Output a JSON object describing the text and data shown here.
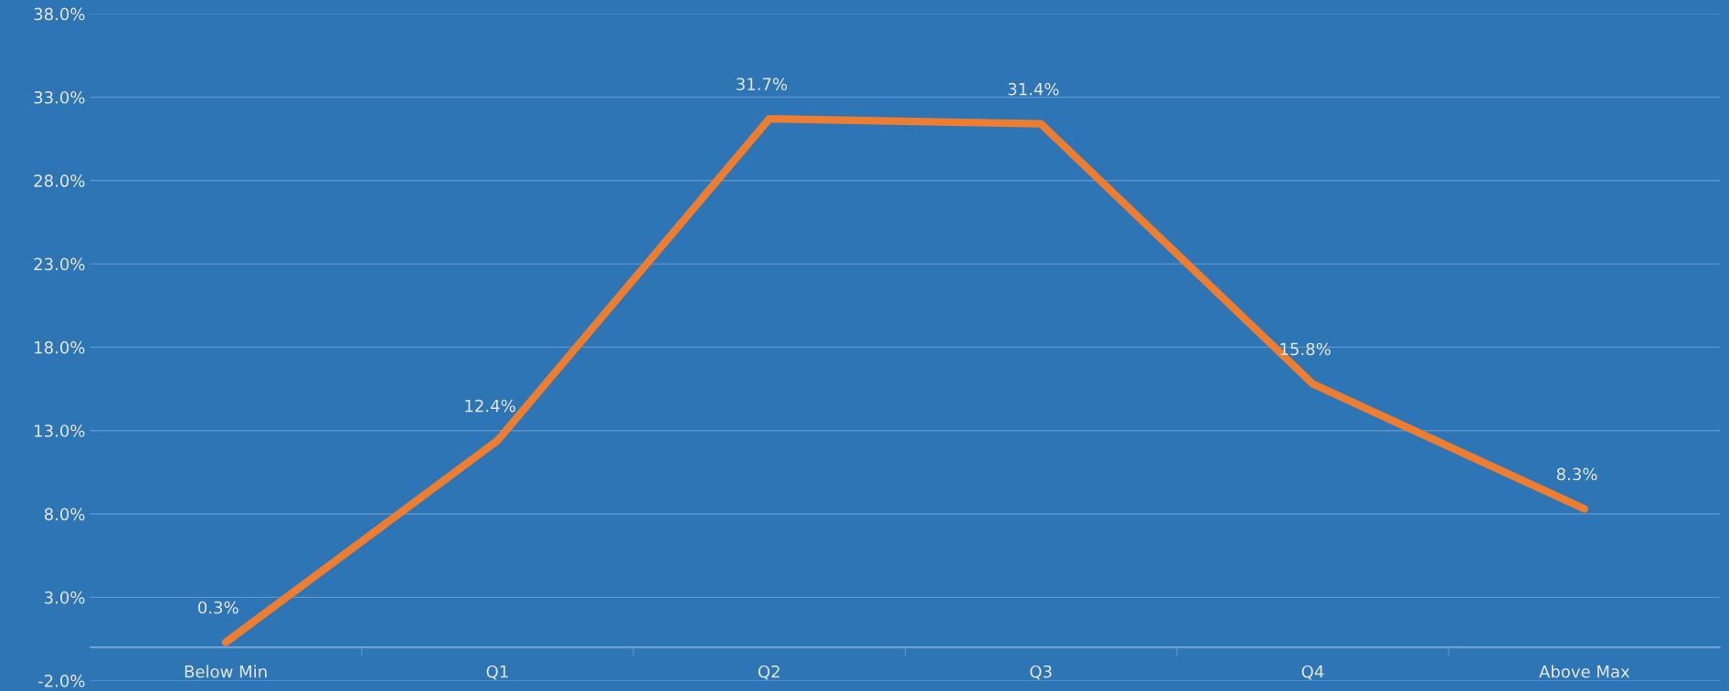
{
  "chart_data": {
    "type": "line",
    "categories": [
      "Below Min",
      "Q1",
      "Q2",
      "Q3",
      "Q4",
      "Above Max"
    ],
    "series": [
      {
        "color": "#ed7d31",
        "values": [
          0.3,
          12.4,
          31.7,
          31.4,
          15.8,
          8.3
        ],
        "value_labels": [
          "0.3%",
          "12.4%",
          "31.7%",
          "31.4%",
          "15.8%",
          "8.3%"
        ]
      }
    ],
    "ylim": [
      -2,
      38
    ],
    "yticks": [
      {
        "value": -2,
        "label": "-2.0%"
      },
      {
        "value": 3,
        "label": "3.0%"
      },
      {
        "value": 8,
        "label": "8.0%"
      },
      {
        "value": 13,
        "label": "13.0%"
      },
      {
        "value": 18,
        "label": "18.0%"
      },
      {
        "value": 23,
        "label": "23.0%"
      },
      {
        "value": 28,
        "label": "28.0%"
      },
      {
        "value": 33,
        "label": "33.0%"
      },
      {
        "value": 38,
        "label": "38.0%"
      }
    ],
    "ref_lines": [
      {
        "axis": "y",
        "value": 0,
        "color": "#6fa0d0"
      }
    ],
    "grid": "y",
    "marker": "none",
    "line_style": "solid",
    "legend": false
  }
}
